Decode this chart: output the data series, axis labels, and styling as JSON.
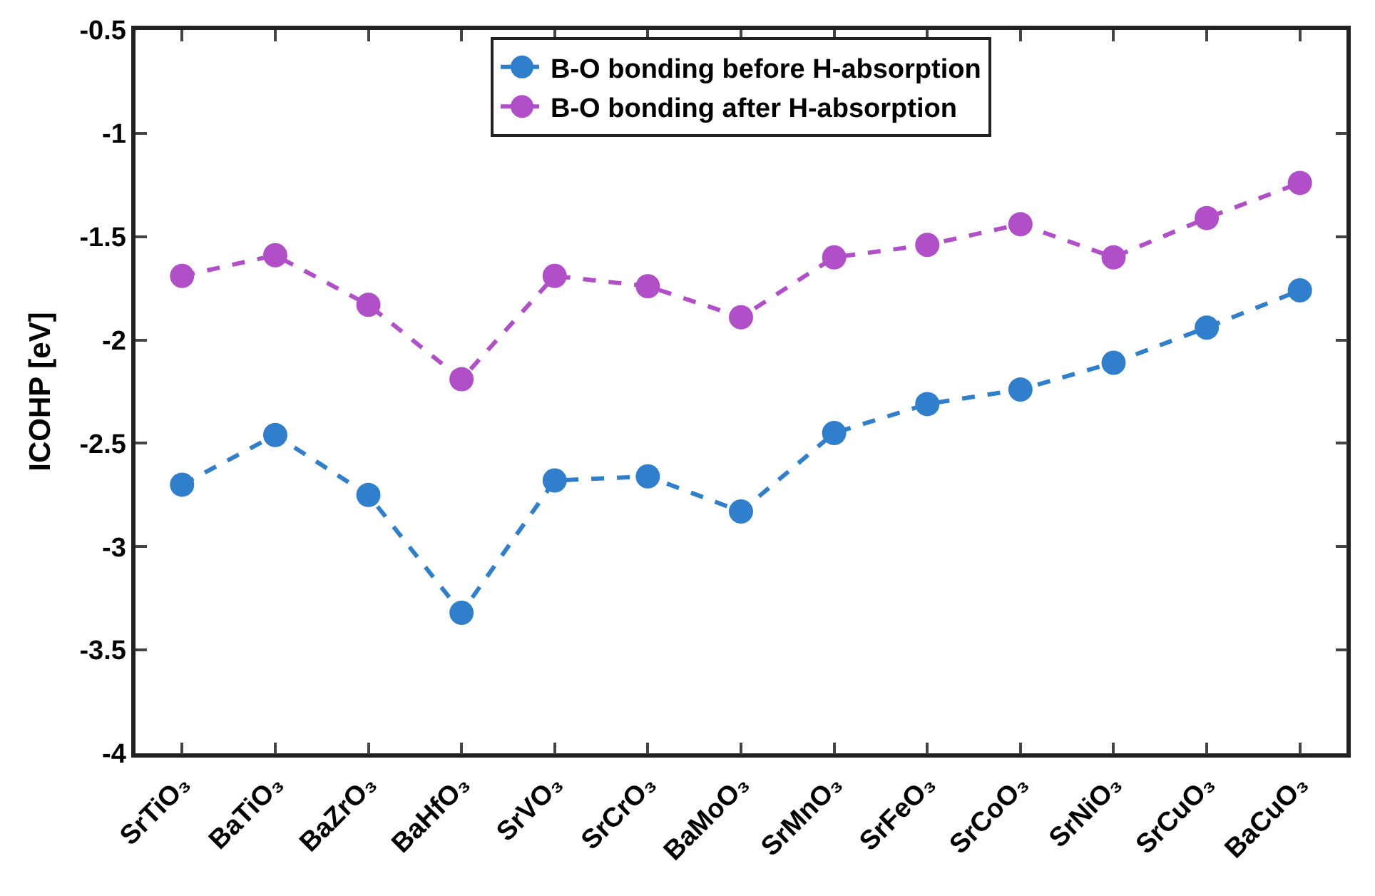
{
  "chart_data": {
    "type": "line",
    "ylabel": "ICOHP [eV]",
    "categories": [
      "SrTiO₃",
      "BaTiO₃",
      "BaZrO₃",
      "BaHfO₃",
      "SrVO₃",
      "SrCrO₃",
      "BaMoO₃",
      "SrMnO₃",
      "SrFeO₃",
      "SrCoO₃",
      "SrNiO₃",
      "SrCuO₃",
      "BaCuO₃"
    ],
    "series": [
      {
        "name": "B-O bonding before H-absorption",
        "color": "#2f7fcc",
        "values": [
          -2.7,
          -2.46,
          -2.75,
          -3.32,
          -2.68,
          -2.66,
          -2.83,
          -2.45,
          -2.31,
          -2.24,
          -2.11,
          -1.94,
          -1.76
        ]
      },
      {
        "name": "B-O bonding after H-absorption",
        "color": "#b04fc8",
        "values": [
          -1.69,
          -1.59,
          -1.83,
          -2.19,
          -1.69,
          -1.74,
          -1.89,
          -1.6,
          -1.54,
          -1.44,
          -1.6,
          -1.41,
          -1.24
        ]
      }
    ],
    "ylim": [
      -4,
      -0.5
    ],
    "yticks": [
      -4,
      -3.5,
      -3,
      -2.5,
      -2,
      -1.5,
      -1,
      -0.5
    ],
    "legend": "top",
    "marker": "circle",
    "line_style": "dashed"
  }
}
